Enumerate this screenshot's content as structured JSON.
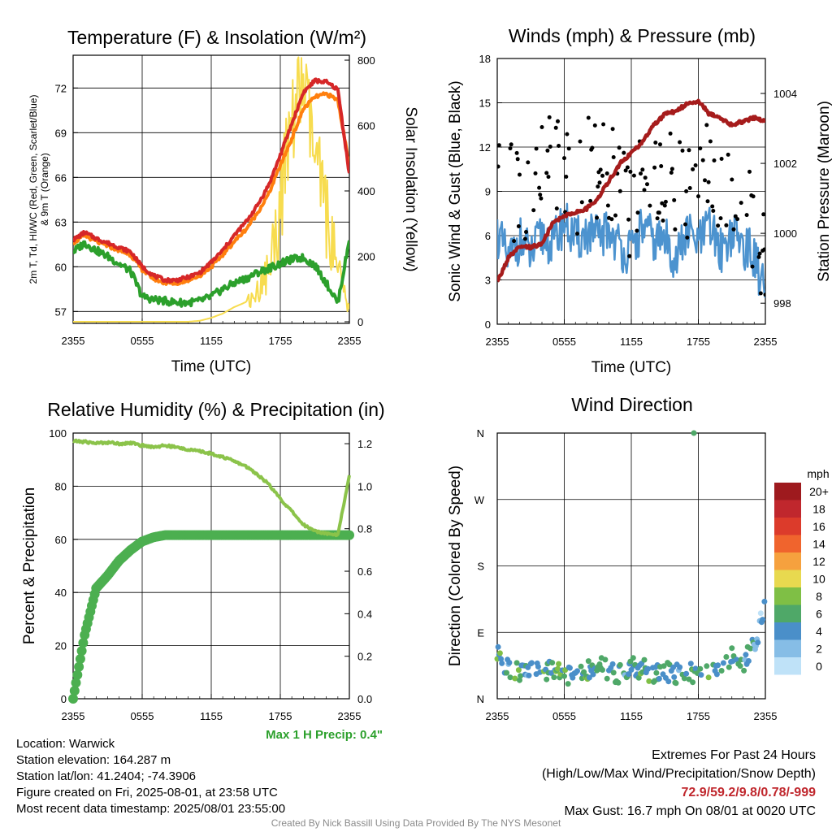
{
  "chart_data": [
    {
      "type": "line",
      "title": "Temperature (F) & Insolation (W/m²)",
      "xlabel": "Time (UTC)",
      "ylabel_left": "2m T, Td, HI/WC (Red, Green, Scarlet/Blue) & 9m T (Orange)",
      "ylabel_right": "Solar Insolation (Yellow)",
      "xticks": [
        "2355",
        "0555",
        "1155",
        "1755",
        "2355"
      ],
      "ylim": [
        56.2,
        74.2
      ],
      "yticks": [
        57,
        60,
        63,
        66,
        69,
        72
      ],
      "y2lim": [
        -5,
        815
      ],
      "y2ticks": [
        0,
        200,
        400,
        600,
        800
      ],
      "x_hours": [
        0,
        1,
        2,
        3,
        4,
        5,
        6,
        7,
        8,
        9,
        10,
        11,
        12,
        13,
        14,
        15,
        16,
        17,
        18,
        19,
        20,
        21,
        22,
        23,
        24
      ],
      "series": [
        {
          "name": "2m T",
          "color": "#d62728",
          "axis": "left",
          "values": [
            61.8,
            62.3,
            61.9,
            61.6,
            61.3,
            61.0,
            60.0,
            59.4,
            59.1,
            59.1,
            59.3,
            59.6,
            60.3,
            61.1,
            62.1,
            63.0,
            64.1,
            65.5,
            67.5,
            69.6,
            71.7,
            72.5,
            72.4,
            71.9,
            66.2
          ]
        },
        {
          "name": "9m T",
          "color": "#ff7f0e",
          "axis": "left",
          "values": [
            61.6,
            62.1,
            61.7,
            61.4,
            61.1,
            60.8,
            59.8,
            59.2,
            58.9,
            58.9,
            59.1,
            59.4,
            60.0,
            60.8,
            61.7,
            62.5,
            63.6,
            64.9,
            66.8,
            68.6,
            70.6,
            71.4,
            71.6,
            71.2,
            66.8
          ]
        },
        {
          "name": "Td",
          "color": "#2ca02c",
          "axis": "left",
          "values": [
            61.0,
            61.6,
            61.1,
            60.7,
            60.2,
            59.7,
            58.0,
            57.8,
            57.7,
            57.6,
            57.6,
            57.7,
            58.0,
            58.5,
            58.9,
            59.2,
            59.6,
            59.9,
            60.2,
            60.5,
            60.6,
            60.1,
            58.9,
            57.6,
            61.8
          ]
        },
        {
          "name": "Solar Insolation",
          "color": "#f7dc4f",
          "axis": "right",
          "values": [
            0,
            0,
            0,
            0,
            0,
            0,
            0,
            0,
            0,
            0,
            0,
            3,
            12,
            25,
            45,
            60,
            90,
            160,
            350,
            620,
            730,
            500,
            330,
            150,
            30
          ]
        }
      ]
    },
    {
      "type": "scatter",
      "title": "Winds (mph) & Pressure (mb)",
      "xlabel": "Time (UTC)",
      "ylabel_left": "Sonic Wind & Gust (Blue, Black)",
      "ylabel_right": "Station Pressure (Maroon)",
      "xticks": [
        "2355",
        "0555",
        "1155",
        "1755",
        "2355"
      ],
      "ylim": [
        0,
        18
      ],
      "yticks": [
        0,
        3,
        6,
        9,
        12,
        15,
        18
      ],
      "y2lim": [
        997.4,
        1005.0
      ],
      "y2ticks": [
        998,
        1000,
        1002,
        1004
      ],
      "x_hours": [
        0,
        1,
        2,
        3,
        4,
        5,
        6,
        7,
        8,
        9,
        10,
        11,
        12,
        13,
        14,
        15,
        16,
        17,
        18,
        19,
        20,
        21,
        22,
        23,
        24
      ],
      "series": [
        {
          "name": "Sonic Wind",
          "color": "#4c93cf",
          "axis": "left",
          "values": [
            6.2,
            4.2,
            5.8,
            4.6,
            6.0,
            5.4,
            7.0,
            5.6,
            6.2,
            5.8,
            6.4,
            5.2,
            4.8,
            6.6,
            5.6,
            5.8,
            4.4,
            6.2,
            5.4,
            6.6,
            5.0,
            6.2,
            5.4,
            4.6,
            2.0
          ]
        },
        {
          "name": "Gust",
          "color": "#000000",
          "axis": "left",
          "values": [
            10.0,
            8.5,
            9.5,
            8.0,
            10.8,
            11.5,
            10.5,
            9.0,
            12.5,
            10.0,
            10.2,
            8.8,
            7.8,
            10.0,
            9.5,
            9.0,
            10.0,
            9.0,
            11.0,
            10.0,
            9.5,
            8.5,
            9.0,
            7.0,
            4.0
          ]
        },
        {
          "name": "Station Pressure",
          "color": "#a61c1c",
          "axis": "right",
          "values": [
            998.6,
            999.3,
            999.6,
            999.6,
            999.7,
            1000.3,
            1000.5,
            1000.6,
            1000.7,
            1001.0,
            1001.5,
            1002.0,
            1002.3,
            1002.6,
            1003.1,
            1003.4,
            1003.5,
            1003.7,
            1003.8,
            1003.4,
            1003.3,
            1003.1,
            1003.2,
            1003.3,
            1003.2
          ]
        }
      ]
    },
    {
      "type": "line",
      "title": "Relative Humidity (%) & Precipitation (in)",
      "ylabel_left": "Percent & Precipitation",
      "xticks": [
        "2355",
        "0555",
        "1155",
        "1755",
        "2355"
      ],
      "ylim": [
        0,
        100
      ],
      "yticks": [
        0,
        20,
        40,
        60,
        80,
        100
      ],
      "y2lim": [
        0,
        1.25
      ],
      "y2ticks": [
        0.0,
        0.2,
        0.4,
        0.6,
        0.8,
        1.0,
        1.2
      ],
      "x_hours": [
        0,
        1,
        2,
        3,
        4,
        5,
        6,
        7,
        8,
        9,
        10,
        11,
        12,
        13,
        14,
        15,
        16,
        17,
        18,
        19,
        20,
        21,
        22,
        23,
        24
      ],
      "series": [
        {
          "name": "Relative Humidity",
          "color": "#8bc34a",
          "axis": "left",
          "values": [
            97.0,
            96.7,
            96.2,
            96.5,
            96.0,
            96.3,
            95.3,
            94.8,
            95.3,
            94.6,
            93.8,
            93.1,
            92.3,
            91.0,
            89.4,
            87.5,
            84.5,
            80.7,
            75.2,
            70.5,
            65.5,
            63.2,
            62.2,
            61.8,
            84.0
          ]
        },
        {
          "name": "Precipitation",
          "color": "#4caf50",
          "axis": "right",
          "values": [
            0.0,
            0.3,
            0.52,
            0.58,
            0.65,
            0.7,
            0.74,
            0.76,
            0.77,
            0.77,
            0.77,
            0.77,
            0.77,
            0.77,
            0.77,
            0.77,
            0.77,
            0.77,
            0.77,
            0.77,
            0.77,
            0.77,
            0.77,
            0.77,
            0.77
          ]
        }
      ],
      "note": "Max 1 H Precip: 0.4\""
    },
    {
      "type": "scatter",
      "title": "Wind Direction",
      "ylabel_left": "Direction (Colored By Speed)",
      "xticks": [
        "2355",
        "0555",
        "1155",
        "1755",
        "2355"
      ],
      "yticks": [
        "N",
        "E",
        "S",
        "W",
        "N"
      ],
      "ylim": [
        0,
        360
      ],
      "x_hours": [
        0,
        1,
        2,
        3,
        4,
        5,
        6,
        7,
        8,
        9,
        10,
        11,
        12,
        13,
        14,
        15,
        16,
        17,
        18,
        19,
        20,
        21,
        22,
        23,
        24
      ],
      "directions": [
        58,
        40,
        35,
        45,
        38,
        42,
        30,
        40,
        36,
        44,
        38,
        35,
        42,
        40,
        36,
        38,
        34,
        40,
        30,
        36,
        42,
        60,
        48,
        70,
        130
      ],
      "speeds": [
        6,
        4,
        6,
        4,
        6,
        5,
        7,
        5,
        6,
        5,
        6,
        5,
        4,
        7,
        5,
        5,
        4,
        6,
        5,
        7,
        5,
        6,
        5,
        4,
        2
      ],
      "outlier": {
        "hour": 17.6,
        "direction": 360,
        "speed": 6
      },
      "legend": {
        "title": "mph",
        "labels": [
          "20+",
          "18",
          "16",
          "14",
          "12",
          "10",
          "8",
          "6",
          "4",
          "2",
          "0"
        ],
        "colors": [
          "#9e1a1e",
          "#c0272d",
          "#dc3b2b",
          "#f0642d",
          "#f6a13e",
          "#e8d94f",
          "#7fbf45",
          "#4fa868",
          "#4a8fc9",
          "#86bde6",
          "#bfe2f8"
        ]
      }
    }
  ],
  "info": {
    "location": "Location: Warwick",
    "elevation": "Station elevation: 164.287 m",
    "latlon": "Station lat/lon: 41.2404; -74.3906",
    "created": "Figure created on Fri, 2025-08-01, at 23:58 UTC",
    "recent": "Most recent data timestamp: 2025/08/01 23:55:00"
  },
  "extremes": {
    "heading": "Extremes For Past 24 Hours",
    "subheading": "(High/Low/Max Wind/Precipitation/Snow Depth)",
    "values": "72.9/59.2/9.8/0.78/-999",
    "gust": "Max Gust: 16.7 mph On 08/01 at 0020 UTC"
  },
  "credit": "Created By Nick Bassill Using Data Provided By The NYS Mesonet"
}
